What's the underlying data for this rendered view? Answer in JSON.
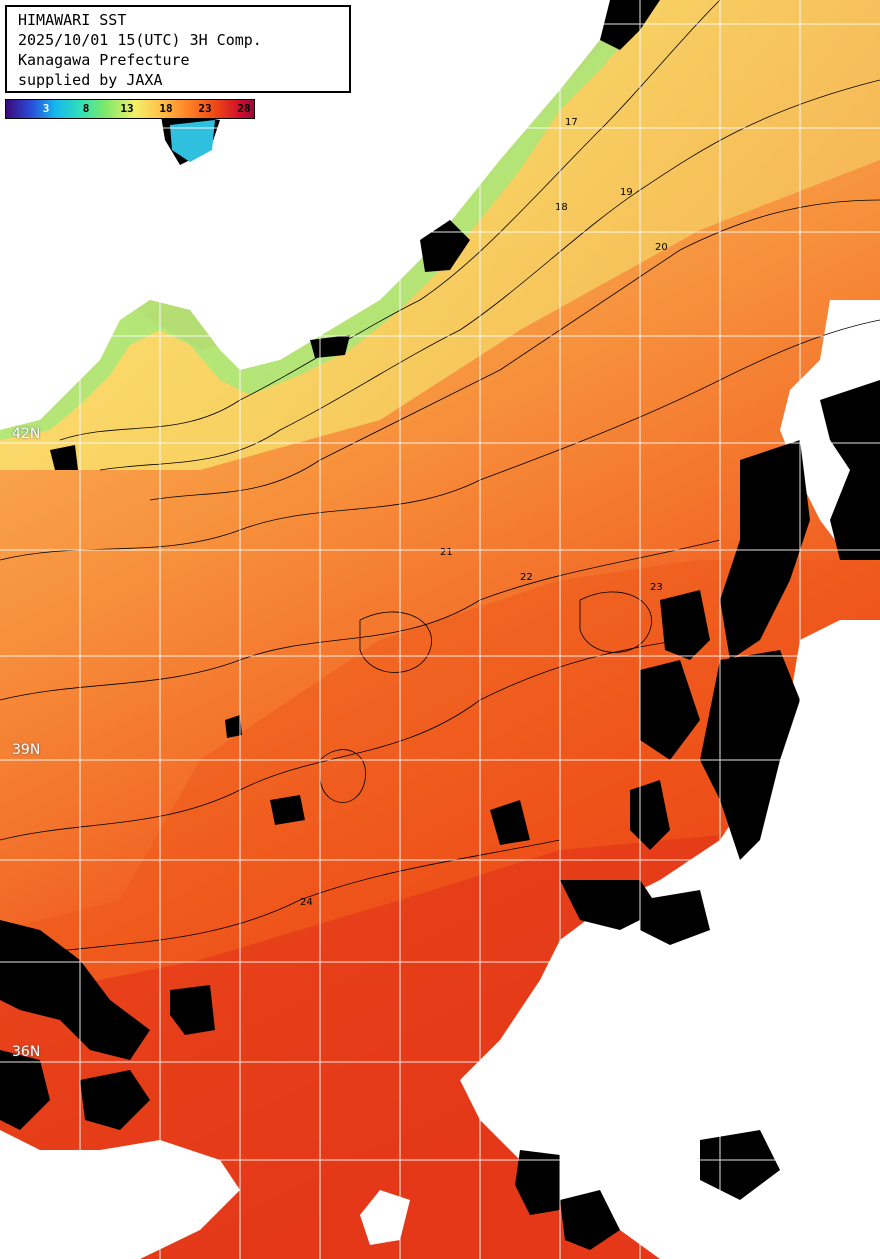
{
  "title": {
    "line1": "HIMAWARI SST",
    "line2": "2025/10/01 15(UTC) 3H Comp.",
    "line3": "Kanagawa Prefecture",
    "line4": "supplied by JAXA"
  },
  "colorbar": {
    "labels": [
      "3",
      "8",
      "13",
      "18",
      "23",
      "28"
    ],
    "unit_colors": {
      "cold": "#2a4bd8",
      "mid": "#f2f06a",
      "warm": "#f04a14",
      "hot": "#d0102a"
    }
  },
  "lat_labels": [
    "42N",
    "39N",
    "36N"
  ],
  "contour_labels": [
    "17",
    "18",
    "19",
    "20",
    "21",
    "22",
    "23",
    "24"
  ],
  "colors": {
    "land": "#ffffff",
    "cloud": "#000000",
    "grid": "#ffffff"
  }
}
